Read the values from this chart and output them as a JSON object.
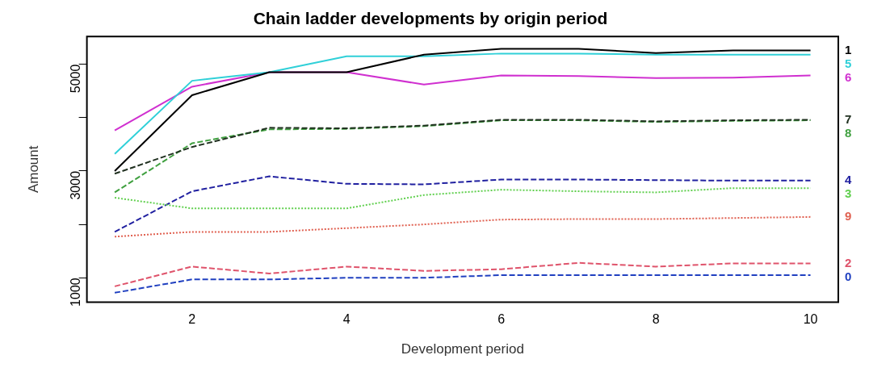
{
  "chart_data": {
    "type": "line",
    "title": "Chain ladder developments by origin period",
    "xlabel": "Development period",
    "ylabel": "Amount",
    "x": [
      1,
      2,
      3,
      4,
      5,
      6,
      7,
      8,
      9,
      10
    ],
    "xlim": [
      0.64,
      10.36
    ],
    "xticks": [
      2,
      4,
      6,
      8,
      10
    ],
    "ylim": [
      545,
      5520
    ],
    "yticks": [
      1000,
      {
        "value": 2000,
        "label": null
      },
      3000,
      {
        "value": 4000,
        "label": null
      },
      5000
    ],
    "grid": false,
    "legend": false,
    "series": [
      {
        "name": "1",
        "color": "#000000",
        "line_style": "solid",
        "values": [
          3000,
          4420,
          4850,
          4850,
          5180,
          5290,
          5290,
          5210,
          5260,
          5260
        ]
      },
      {
        "name": "2",
        "color": "#df536b",
        "line_style": "dashed",
        "values": [
          840,
          1210,
          1080,
          1210,
          1130,
          1160,
          1280,
          1210,
          1270,
          1270
        ]
      },
      {
        "name": "3",
        "color": "#61d04f",
        "line_style": "dotted",
        "values": [
          2500,
          2300,
          2300,
          2300,
          2550,
          2650,
          2620,
          2600,
          2680,
          2680
        ]
      },
      {
        "name": "4",
        "color": "#2020a0",
        "line_style": "dashed",
        "values": [
          1860,
          2620,
          2900,
          2760,
          2750,
          2840,
          2840,
          2830,
          2820,
          2820
        ]
      },
      {
        "name": "5",
        "color": "#30d0d8",
        "line_style": "solid",
        "values": [
          3320,
          4690,
          4850,
          5150,
          5150,
          5200,
          5200,
          5180,
          5180,
          5180
        ]
      },
      {
        "name": "6",
        "color": "#d030d0",
        "line_style": "solid",
        "values": [
          3760,
          4580,
          4850,
          4850,
          4620,
          4790,
          4780,
          4740,
          4750,
          4790
        ]
      },
      {
        "name": "7",
        "color": "#203020",
        "line_style": "dashed",
        "values": [
          2950,
          3450,
          3810,
          3800,
          3850,
          3960,
          3960,
          3930,
          3950,
          3960
        ]
      },
      {
        "name": "8",
        "color": "#40a040",
        "line_style": "dashed",
        "values": [
          2600,
          3520,
          3780,
          3790,
          3840,
          3950,
          3950,
          3920,
          3940,
          3950
        ]
      },
      {
        "name": "9",
        "color": "#e06050",
        "line_style": "dotted",
        "values": [
          1770,
          1860,
          1860,
          1930,
          2000,
          2090,
          2100,
          2100,
          2120,
          2140
        ]
      },
      {
        "name": "0",
        "color": "#2040c0",
        "line_style": "dashed",
        "values": [
          720,
          970,
          970,
          1000,
          1000,
          1050,
          1050,
          1050,
          1050,
          1050
        ]
      }
    ]
  }
}
